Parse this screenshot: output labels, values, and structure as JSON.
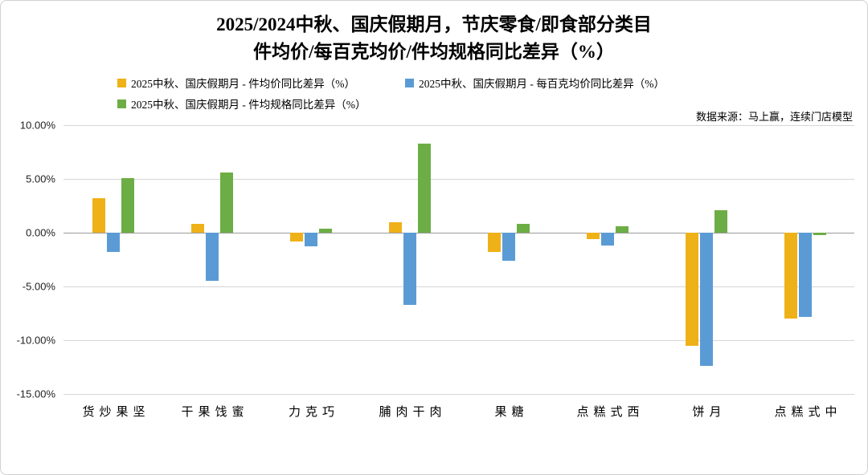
{
  "title": {
    "line1": "2025/2024中秋、国庆假期月，节庆零食/即食部分类目",
    "line2": "件均价/每百克均价/件均规格同比差异（%）"
  },
  "legend": {
    "items": [
      {
        "label": "2025中秋、国庆假期月 - 件均价同比差异（%）"
      },
      {
        "label": "2025中秋、国庆假期月 - 每百克均价同比差异（%）"
      },
      {
        "label": "2025中秋、国庆假期月 - 件均规格同比差异（%）"
      }
    ]
  },
  "source": "数据来源：马上赢，连续门店模型",
  "chart_data": {
    "type": "bar",
    "title": "2025/2024中秋、国庆假期月，节庆零食/即食部分类目 件均价/每百克均价/件均规格同比差异（%）",
    "categories": [
      "坚果炒货",
      "蜜饯果干",
      "巧克力",
      "肉干肉脯",
      "糖果",
      "西式糕点",
      "月饼",
      "中式糕点"
    ],
    "series": [
      {
        "key": "avg-price",
        "name": "2025中秋、国庆假期月 - 件均价同比差异（%）",
        "color": "#EFB118",
        "values": [
          3.2,
          0.8,
          -0.8,
          1.0,
          -1.8,
          -0.6,
          -10.5,
          -8.0
        ]
      },
      {
        "key": "per-100g-price",
        "name": "2025中秋、国庆假期月 - 每百克均价同比差异（%）",
        "color": "#5B9BD5",
        "values": [
          -1.8,
          -4.5,
          -1.3,
          -6.7,
          -2.6,
          -1.2,
          -12.4,
          -7.8
        ]
      },
      {
        "key": "avg-spec",
        "name": "2025中秋、国庆假期月 - 件均规格同比差异（%）",
        "color": "#6CAE45",
        "values": [
          5.1,
          5.6,
          0.4,
          8.3,
          0.8,
          0.6,
          2.1,
          -0.2
        ]
      }
    ],
    "xlabel": "",
    "ylabel": "",
    "ylim": [
      -15,
      10
    ],
    "ytick_values": [
      10,
      5,
      0,
      -5,
      -10,
      -15
    ],
    "ytick_labels": [
      "10.00%",
      "5.00%",
      "0.00%",
      "-5.00%",
      "-10.00%",
      "-15.00%"
    ],
    "grid": true,
    "legend_position": "top"
  }
}
